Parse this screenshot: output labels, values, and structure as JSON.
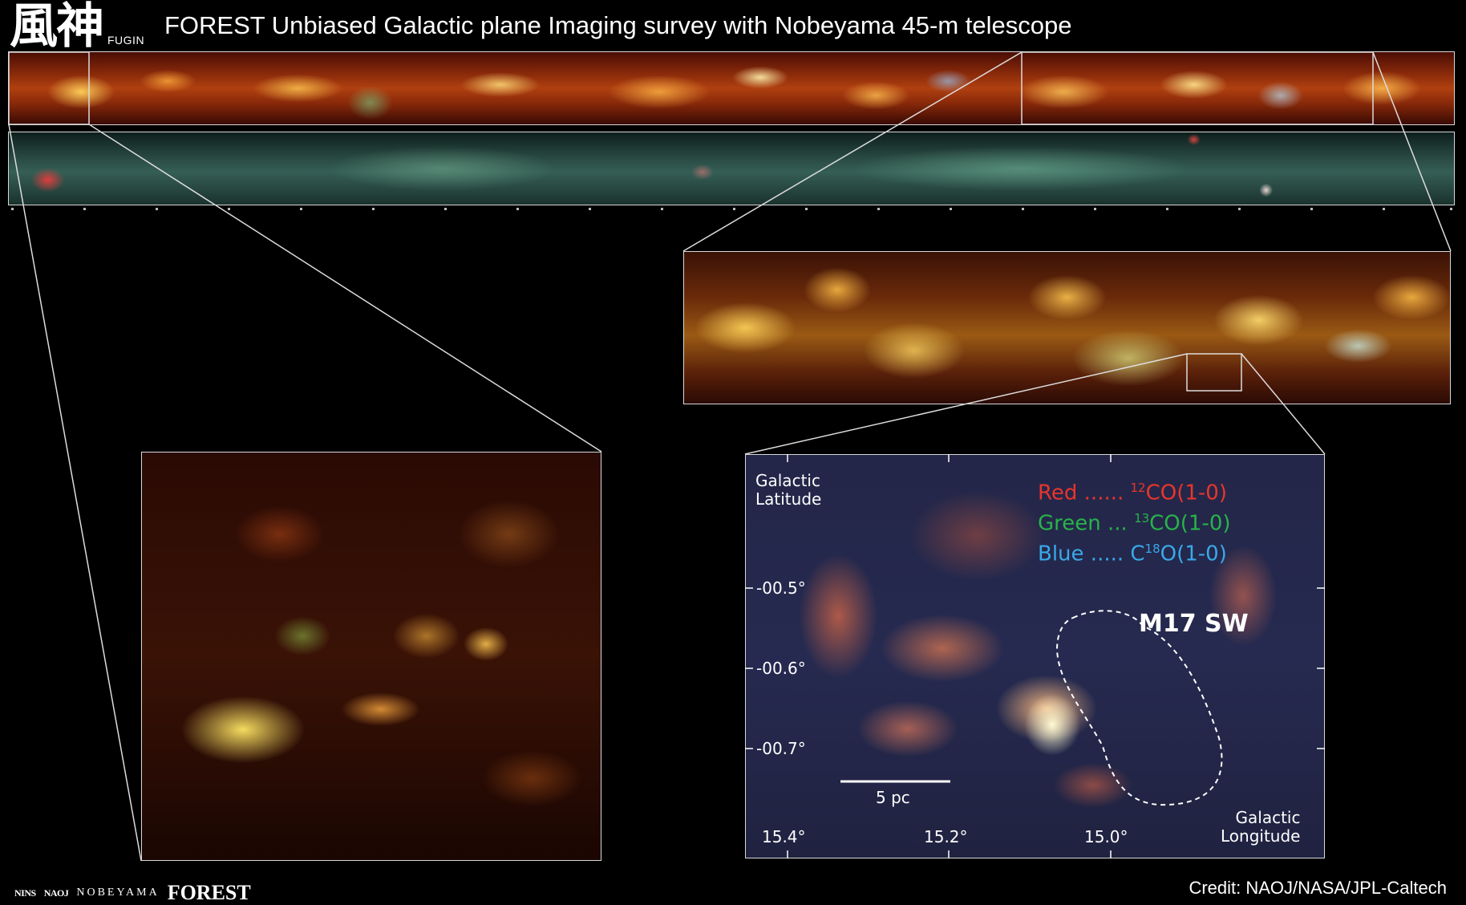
{
  "header": {
    "logo_kanji": "風神",
    "logo_sub": "FUGIN",
    "title": "FOREST Unbiased Galactic plane Imaging survey with Nobeyama 45-m telescope"
  },
  "panels": {
    "strip_top": "top-plane-strip-12co-image",
    "strip_mid": "middle-plane-strip-infrared-image",
    "strip_zoom": "zoomed-galactic-plane-strip",
    "zoom_left": "left-zoom-region-image",
    "zoom_right": "m17-sw-zoom-region-image"
  },
  "zoom_right": {
    "lat_label_line1": "Galactic",
    "lat_label_line2": "Latitude",
    "lon_label_line1": "Galactic",
    "lon_label_line2": "Longitude",
    "y_ticks": [
      "-00.5°",
      "-00.6°",
      "-00.7°"
    ],
    "x_ticks": [
      "15.4°",
      "15.2°",
      "15.0°"
    ],
    "scale_label": "5 pc",
    "region_label": "M17 SW",
    "legend": {
      "red_prefix": "Red ...... ",
      "red_sup": "12",
      "red_suffix": "CO(1-0)",
      "green_prefix": "Green ... ",
      "green_sup": "13",
      "green_suffix": "CO(1-0)",
      "blue_prefix": "Blue .....  C",
      "blue_sup": "18",
      "blue_suffix": "O(1-0)"
    },
    "colors": {
      "red": "#e8352b",
      "green": "#27b34a",
      "blue": "#3aa8e8"
    }
  },
  "footer": {
    "logo_nins": "NINS",
    "logo_naoj": "NAOJ",
    "logo_nobeyama": "NOBEYAMA",
    "logo_forest": "FOREST",
    "credit": "Credit: NAOJ/NASA/JPL-Caltech"
  }
}
